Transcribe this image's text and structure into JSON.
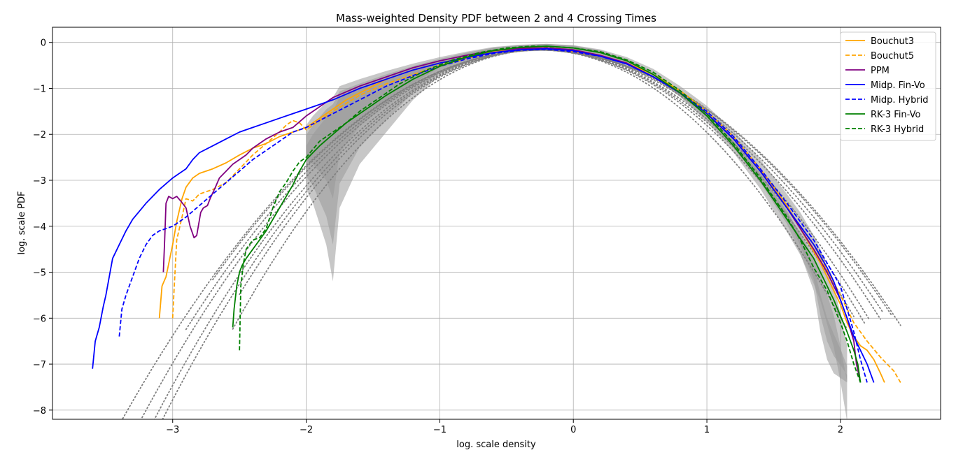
{
  "chart_data": {
    "type": "line",
    "title": "Mass-weighted Density PDF between 2 and 4 Crossing Times",
    "xlabel": "log. scale density",
    "ylabel": "log. scale PDF",
    "xlim": [
      -3.9,
      2.75
    ],
    "ylim": [
      -8.2,
      0.33
    ],
    "xticks": [
      -3,
      -2,
      -1,
      0,
      1,
      2
    ],
    "yticks": [
      0,
      -1,
      -2,
      -3,
      -4,
      -5,
      -6,
      -7,
      -8
    ],
    "xtick_labels": [
      "−3",
      "−2",
      "−1",
      "0",
      "1",
      "2"
    ],
    "ytick_labels": [
      "0",
      "−1",
      "−2",
      "−3",
      "−4",
      "−5",
      "−6",
      "−7",
      "−8"
    ],
    "grid": true,
    "legend_position": "top-right",
    "series": [
      {
        "name": "Bouchut3",
        "color": "#ffa500",
        "style": "solid",
        "x": [
          -3.1,
          -3.08,
          -3.05,
          -3.0,
          -2.97,
          -2.93,
          -2.9,
          -2.85,
          -2.8,
          -2.7,
          -2.6,
          -2.5,
          -2.4,
          -2.3,
          -2.2,
          -2.1,
          -2.0,
          -1.9,
          -1.8,
          -1.7,
          -1.6,
          -1.5,
          -1.4,
          -1.3,
          -1.2,
          -1.0,
          -0.8,
          -0.6,
          -0.4,
          -0.3,
          -0.2,
          -0.1,
          0.0,
          0.2,
          0.4,
          0.6,
          0.8,
          1.0,
          1.2,
          1.4,
          1.6,
          1.75,
          1.85,
          1.9,
          1.95,
          2.0,
          2.05,
          2.1,
          2.15,
          2.2,
          2.25,
          2.3,
          2.33
        ],
        "y": [
          -6.0,
          -5.3,
          -5.1,
          -4.4,
          -3.9,
          -3.4,
          -3.15,
          -2.95,
          -2.85,
          -2.75,
          -2.62,
          -2.45,
          -2.3,
          -2.2,
          -2.05,
          -1.95,
          -1.85,
          -1.65,
          -1.45,
          -1.25,
          -1.1,
          -0.95,
          -0.8,
          -0.7,
          -0.6,
          -0.45,
          -0.32,
          -0.2,
          -0.14,
          -0.12,
          -0.12,
          -0.15,
          -0.2,
          -0.3,
          -0.45,
          -0.7,
          -1.05,
          -1.5,
          -2.05,
          -2.75,
          -3.55,
          -4.3,
          -4.8,
          -5.1,
          -5.4,
          -5.7,
          -6.1,
          -6.4,
          -6.6,
          -6.7,
          -6.9,
          -7.2,
          -7.4
        ]
      },
      {
        "name": "Bouchut5",
        "color": "#ffa500",
        "style": "dashed",
        "x": [
          -3.0,
          -2.99,
          -2.97,
          -2.93,
          -2.9,
          -2.85,
          -2.8,
          -2.75,
          -2.7,
          -2.6,
          -2.5,
          -2.4,
          -2.3,
          -2.2,
          -2.15,
          -2.1,
          -2.05,
          -2.0,
          -1.9,
          -1.8,
          -1.6,
          -1.4,
          -1.2,
          -1.0,
          -0.8,
          -0.6,
          -0.4,
          -0.2,
          0.0,
          0.2,
          0.4,
          0.6,
          0.8,
          1.0,
          1.2,
          1.4,
          1.6,
          1.8,
          1.9,
          2.0,
          2.1,
          2.2,
          2.3,
          2.4,
          2.45
        ],
        "y": [
          -6.0,
          -5.4,
          -4.3,
          -3.8,
          -3.4,
          -3.45,
          -3.3,
          -3.25,
          -3.2,
          -3.05,
          -2.75,
          -2.45,
          -2.2,
          -1.95,
          -1.8,
          -1.7,
          -1.75,
          -1.9,
          -1.7,
          -1.5,
          -1.15,
          -0.9,
          -0.7,
          -0.5,
          -0.35,
          -0.22,
          -0.15,
          -0.12,
          -0.16,
          -0.28,
          -0.45,
          -0.75,
          -1.1,
          -1.55,
          -2.1,
          -2.8,
          -3.6,
          -4.4,
          -4.95,
          -5.5,
          -6.1,
          -6.5,
          -6.85,
          -7.15,
          -7.4
        ]
      },
      {
        "name": "PPM",
        "color": "#800080",
        "style": "solid",
        "x": [
          -3.07,
          -3.06,
          -3.05,
          -3.03,
          -3.0,
          -2.97,
          -2.94,
          -2.9,
          -2.87,
          -2.84,
          -2.82,
          -2.79,
          -2.77,
          -2.74,
          -2.72,
          -2.68,
          -2.65,
          -2.6,
          -2.55,
          -2.5,
          -2.45,
          -2.4,
          -2.3,
          -2.2,
          -2.1,
          -2.0,
          -1.9,
          -1.8,
          -1.6,
          -1.4,
          -1.2,
          -1.0,
          -0.8,
          -0.6,
          -0.4,
          -0.2,
          0.0,
          0.2,
          0.4,
          0.6,
          0.8,
          1.0,
          1.2,
          1.4,
          1.6,
          1.8,
          1.9,
          2.0,
          2.05,
          2.1,
          2.12,
          2.15
        ],
        "y": [
          -5.0,
          -4.3,
          -3.5,
          -3.35,
          -3.4,
          -3.35,
          -3.45,
          -3.6,
          -4.0,
          -4.25,
          -4.2,
          -3.7,
          -3.6,
          -3.55,
          -3.4,
          -3.15,
          -2.95,
          -2.8,
          -2.65,
          -2.55,
          -2.45,
          -2.3,
          -2.1,
          -1.95,
          -1.85,
          -1.6,
          -1.4,
          -1.2,
          -0.95,
          -0.75,
          -0.55,
          -0.4,
          -0.28,
          -0.18,
          -0.13,
          -0.12,
          -0.16,
          -0.28,
          -0.45,
          -0.75,
          -1.1,
          -1.55,
          -2.1,
          -2.8,
          -3.6,
          -4.5,
          -5.0,
          -5.6,
          -6.0,
          -6.5,
          -7.0,
          -7.4
        ]
      },
      {
        "name": "Midp. Fin-Vo",
        "color": "#0000ff",
        "style": "solid",
        "x": [
          -3.6,
          -3.58,
          -3.55,
          -3.52,
          -3.5,
          -3.45,
          -3.4,
          -3.35,
          -3.3,
          -3.2,
          -3.1,
          -3.0,
          -2.9,
          -2.85,
          -2.8,
          -2.7,
          -2.6,
          -2.5,
          -2.4,
          -2.3,
          -2.2,
          -2.1,
          -2.0,
          -1.9,
          -1.8,
          -1.6,
          -1.4,
          -1.2,
          -1.0,
          -0.8,
          -0.6,
          -0.4,
          -0.2,
          0.0,
          0.2,
          0.4,
          0.6,
          0.8,
          1.0,
          1.2,
          1.4,
          1.6,
          1.8,
          1.9,
          1.95,
          2.0,
          2.05,
          2.1,
          2.15,
          2.2,
          2.25
        ],
        "y": [
          -7.1,
          -6.5,
          -6.2,
          -5.75,
          -5.5,
          -4.7,
          -4.4,
          -4.1,
          -3.85,
          -3.5,
          -3.2,
          -2.95,
          -2.75,
          -2.55,
          -2.4,
          -2.25,
          -2.1,
          -1.95,
          -1.85,
          -1.75,
          -1.65,
          -1.55,
          -1.45,
          -1.35,
          -1.25,
          -1.0,
          -0.8,
          -0.6,
          -0.45,
          -0.33,
          -0.22,
          -0.16,
          -0.14,
          -0.18,
          -0.3,
          -0.47,
          -0.75,
          -1.1,
          -1.55,
          -2.1,
          -2.8,
          -3.6,
          -4.4,
          -4.9,
          -5.2,
          -5.6,
          -6.0,
          -6.4,
          -6.7,
          -7.0,
          -7.4
        ]
      },
      {
        "name": "Midp. Hybrid",
        "color": "#0000ff",
        "style": "dashed",
        "x": [
          -3.4,
          -3.38,
          -3.35,
          -3.3,
          -3.25,
          -3.2,
          -3.15,
          -3.1,
          -3.05,
          -3.0,
          -2.9,
          -2.8,
          -2.7,
          -2.6,
          -2.5,
          -2.4,
          -2.3,
          -2.2,
          -2.1,
          -2.0,
          -1.8,
          -1.6,
          -1.4,
          -1.2,
          -1.0,
          -0.8,
          -0.6,
          -0.4,
          -0.2,
          0.0,
          0.2,
          0.4,
          0.6,
          0.8,
          1.0,
          1.2,
          1.4,
          1.6,
          1.8,
          1.9,
          2.0,
          2.05,
          2.1,
          2.15,
          2.2
        ],
        "y": [
          -6.4,
          -5.8,
          -5.5,
          -5.1,
          -4.7,
          -4.4,
          -4.2,
          -4.1,
          -4.05,
          -4.0,
          -3.8,
          -3.55,
          -3.3,
          -3.05,
          -2.8,
          -2.55,
          -2.35,
          -2.15,
          -1.95,
          -1.85,
          -1.55,
          -1.25,
          -0.95,
          -0.72,
          -0.52,
          -0.36,
          -0.24,
          -0.17,
          -0.15,
          -0.2,
          -0.3,
          -0.47,
          -0.75,
          -1.1,
          -1.5,
          -2.05,
          -2.75,
          -3.5,
          -4.3,
          -4.8,
          -5.3,
          -5.8,
          -6.3,
          -6.9,
          -7.4
        ]
      },
      {
        "name": "RK-3  Fin-Vo",
        "color": "#008000",
        "style": "solid",
        "x": [
          -2.55,
          -2.54,
          -2.52,
          -2.5,
          -2.48,
          -2.45,
          -2.4,
          -2.35,
          -2.3,
          -2.2,
          -2.1,
          -2.05,
          -2.0,
          -1.95,
          -1.9,
          -1.8,
          -1.7,
          -1.6,
          -1.5,
          -1.4,
          -1.2,
          -1.0,
          -0.8,
          -0.6,
          -0.4,
          -0.2,
          0.0,
          0.2,
          0.4,
          0.6,
          0.8,
          1.0,
          1.2,
          1.4,
          1.6,
          1.8,
          1.9,
          1.95,
          2.0,
          2.05,
          2.1,
          2.13,
          2.15
        ],
        "y": [
          -6.2,
          -5.8,
          -5.3,
          -5.0,
          -4.85,
          -4.7,
          -4.5,
          -4.3,
          -4.1,
          -3.6,
          -3.1,
          -2.8,
          -2.55,
          -2.4,
          -2.25,
          -2.0,
          -1.75,
          -1.55,
          -1.35,
          -1.15,
          -0.8,
          -0.52,
          -0.32,
          -0.18,
          -0.11,
          -0.08,
          -0.12,
          -0.22,
          -0.4,
          -0.7,
          -1.1,
          -1.6,
          -2.25,
          -3.0,
          -3.85,
          -4.7,
          -5.3,
          -5.6,
          -5.95,
          -6.3,
          -6.7,
          -7.0,
          -7.4
        ]
      },
      {
        "name": "RK-3  Hybrid",
        "color": "#008000",
        "style": "dashed",
        "x": [
          -2.5,
          -2.49,
          -2.47,
          -2.45,
          -2.4,
          -2.35,
          -2.3,
          -2.25,
          -2.2,
          -2.15,
          -2.1,
          -2.05,
          -2.0,
          -1.9,
          -1.8,
          -1.7,
          -1.6,
          -1.5,
          -1.3,
          -1.1,
          -0.9,
          -0.7,
          -0.5,
          -0.3,
          -0.1,
          0.0,
          0.2,
          0.4,
          0.6,
          0.8,
          1.0,
          1.2,
          1.4,
          1.6,
          1.7,
          1.8,
          1.9,
          2.0,
          2.05,
          2.1,
          2.15
        ],
        "y": [
          -6.7,
          -5.3,
          -4.8,
          -4.5,
          -4.3,
          -4.25,
          -4.05,
          -3.6,
          -3.25,
          -3.05,
          -2.8,
          -2.6,
          -2.5,
          -2.15,
          -1.95,
          -1.75,
          -1.5,
          -1.3,
          -0.9,
          -0.6,
          -0.38,
          -0.22,
          -0.12,
          -0.08,
          -0.1,
          -0.12,
          -0.2,
          -0.38,
          -0.65,
          -1.05,
          -1.55,
          -2.2,
          -2.95,
          -3.8,
          -4.3,
          -4.9,
          -5.4,
          -6.1,
          -6.5,
          -7.0,
          -7.4
        ]
      }
    ],
    "dotted_reference_curves": {
      "color": "#808080",
      "curves": [
        {
          "x0": -3.6,
          "x1": 2.45,
          "a": -0.165,
          "mu": -0.25,
          "s": 0.78
        },
        {
          "x0": -3.4,
          "x1": 2.3,
          "a": -0.165,
          "mu": -0.25,
          "s": 0.745
        },
        {
          "x0": -3.2,
          "x1": 2.22,
          "a": -0.165,
          "mu": -0.25,
          "s": 0.72
        },
        {
          "x0": -3.1,
          "x1": 2.18,
          "a": -0.165,
          "mu": -0.25,
          "s": 0.705
        },
        {
          "x0": -2.9,
          "x1": 2.32,
          "a": -0.165,
          "mu": -0.25,
          "s": 0.76
        },
        {
          "x0": -2.7,
          "x1": 2.38,
          "a": -0.165,
          "mu": -0.25,
          "s": 0.775
        },
        {
          "x0": -2.5,
          "x1": 2.1,
          "a": -0.165,
          "mu": -0.25,
          "s": 0.69
        },
        {
          "x0": -2.55,
          "x1": 2.05,
          "a": -0.165,
          "mu": -0.25,
          "s": 0.66
        }
      ]
    },
    "shaded_band": {
      "color": "#999999",
      "x": [
        -2.0,
        -1.95,
        -1.85,
        -1.8,
        -1.75,
        -1.6,
        -1.4,
        -1.2,
        -1.0,
        -0.8,
        -0.6,
        -0.4,
        -0.2,
        0.0,
        0.2,
        0.4,
        0.6,
        0.8,
        1.0,
        1.2,
        1.4,
        1.6,
        1.7,
        1.8,
        1.85,
        1.9,
        1.95,
        2.0,
        2.05
      ],
      "upper": [
        -1.8,
        -1.6,
        -1.3,
        -1.2,
        -0.95,
        -0.8,
        -0.62,
        -0.46,
        -0.32,
        -0.2,
        -0.1,
        -0.05,
        -0.03,
        -0.06,
        -0.15,
        -0.32,
        -0.58,
        -0.95,
        -1.38,
        -1.92,
        -2.55,
        -3.3,
        -3.7,
        -4.2,
        -4.5,
        -4.9,
        -5.3,
        -5.9,
        -6.6
      ],
      "lower": [
        -3.2,
        -3.5,
        -4.4,
        -5.2,
        -3.6,
        -2.65,
        -1.95,
        -1.25,
        -0.72,
        -0.45,
        -0.28,
        -0.2,
        -0.18,
        -0.22,
        -0.32,
        -0.5,
        -0.78,
        -1.18,
        -1.68,
        -2.3,
        -3.05,
        -3.95,
        -4.6,
        -5.4,
        -6.3,
        -6.9,
        -7.2,
        -7.3,
        -7.4
      ]
    }
  }
}
